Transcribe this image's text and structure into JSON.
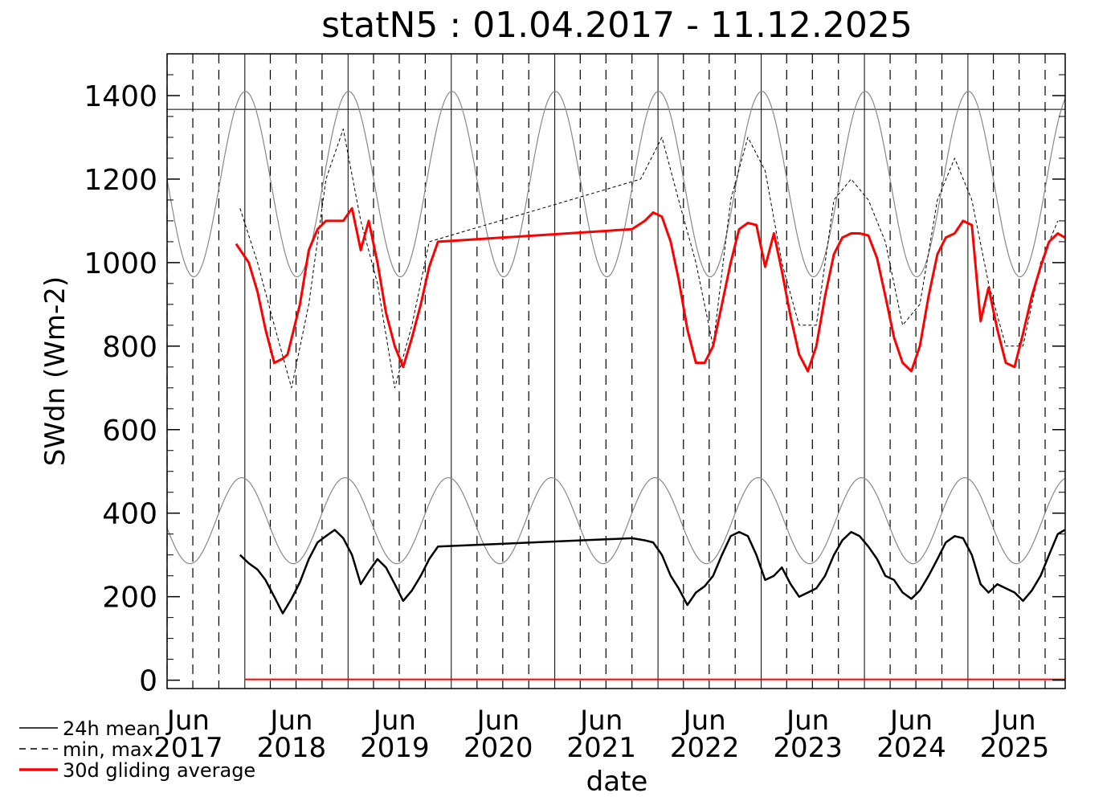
{
  "chart_data": {
    "type": "line",
    "title": "statN5 : 01.04.2017 - 11.12.2025",
    "xlabel": "date",
    "ylabel": "SWdn (Wm-2)",
    "xlim": [
      "2017-04-01",
      "2025-12-11"
    ],
    "ylim": [
      -20,
      1500
    ],
    "y_ticks": [
      "0",
      "200",
      "400",
      "600",
      "800",
      "1000",
      "1200",
      "1400"
    ],
    "x_ticks": [
      {
        "month": "Jun",
        "year": "2017",
        "date": "2017-06-15"
      },
      {
        "month": "Jun",
        "year": "2018",
        "date": "2018-06-15"
      },
      {
        "month": "Jun",
        "year": "2019",
        "date": "2019-06-15"
      },
      {
        "month": "Jun",
        "year": "2020",
        "date": "2020-06-15"
      },
      {
        "month": "Jun",
        "year": "2021",
        "date": "2021-06-15"
      },
      {
        "month": "Jun",
        "year": "2022",
        "date": "2022-06-15"
      },
      {
        "month": "Jun",
        "year": "2023",
        "date": "2023-06-15"
      },
      {
        "month": "Jun",
        "year": "2024",
        "date": "2024-06-15"
      },
      {
        "month": "Jun",
        "year": "2025",
        "date": "2025-06-15"
      }
    ],
    "reference_line": 1367,
    "legend": {
      "position": "bottom-left",
      "entries": [
        {
          "label": "24h mean",
          "style": "solid",
          "color": "#000000"
        },
        {
          "label": "min, max",
          "style": "dashed",
          "color": "#000000"
        },
        {
          "label": "30d gliding average",
          "style": "solid-thick",
          "color": "#ff0000"
        }
      ]
    },
    "series": [
      {
        "name": "24h mean",
        "color": "#000000",
        "x": [
          "2017-12-15",
          "2018-01-15",
          "2018-02-15",
          "2018-03-15",
          "2018-04-15",
          "2018-05-15",
          "2018-06-15",
          "2018-07-15",
          "2018-08-15",
          "2018-09-15",
          "2018-10-15",
          "2018-11-15",
          "2018-12-15",
          "2019-01-15",
          "2019-02-15",
          "2019-03-15",
          "2019-04-15",
          "2019-05-15",
          "2019-06-15",
          "2019-07-15",
          "2019-08-15",
          "2019-09-15",
          "2019-10-15",
          "2019-11-15",
          "2021-10-01",
          "2021-11-15",
          "2021-12-15",
          "2022-01-15",
          "2022-02-15",
          "2022-03-15",
          "2022-04-15",
          "2022-05-15",
          "2022-06-15",
          "2022-07-15",
          "2022-08-15",
          "2022-09-15",
          "2022-10-15",
          "2022-11-15",
          "2022-12-15",
          "2023-01-15",
          "2023-02-15",
          "2023-03-15",
          "2023-04-15",
          "2023-05-15",
          "2023-06-15",
          "2023-07-15",
          "2023-08-15",
          "2023-09-15",
          "2023-10-15",
          "2023-11-15",
          "2023-12-15",
          "2024-01-15",
          "2024-02-15",
          "2024-03-15",
          "2024-04-15",
          "2024-05-15",
          "2024-06-15",
          "2024-07-15",
          "2024-08-15",
          "2024-09-15",
          "2024-10-15",
          "2024-11-15",
          "2024-12-15",
          "2025-01-15",
          "2025-02-15",
          "2025-03-15",
          "2025-04-15",
          "2025-05-15",
          "2025-06-15",
          "2025-07-15",
          "2025-08-15",
          "2025-09-15",
          "2025-10-15",
          "2025-11-15",
          "2025-12-10"
        ],
        "values": [
          300,
          280,
          265,
          240,
          200,
          160,
          195,
          235,
          290,
          330,
          345,
          360,
          340,
          300,
          230,
          260,
          290,
          270,
          230,
          190,
          215,
          250,
          290,
          320,
          340,
          335,
          330,
          300,
          250,
          220,
          180,
          210,
          225,
          250,
          300,
          345,
          355,
          345,
          300,
          240,
          250,
          270,
          230,
          200,
          210,
          220,
          250,
          300,
          335,
          355,
          345,
          320,
          290,
          250,
          240,
          210,
          195,
          215,
          250,
          290,
          330,
          345,
          340,
          300,
          230,
          210,
          230,
          220,
          210,
          190,
          215,
          250,
          300,
          350,
          360
        ]
      },
      {
        "name": "min, max",
        "color": "#000000",
        "x": [
          "2017-12-15",
          "2018-02-15",
          "2018-04-15",
          "2018-06-15",
          "2018-08-15",
          "2018-10-15",
          "2018-12-15",
          "2019-02-15",
          "2019-04-15",
          "2019-06-15",
          "2019-08-15",
          "2019-10-15",
          "2021-11-01",
          "2022-01-15",
          "2022-03-15",
          "2022-05-15",
          "2022-07-15",
          "2022-09-15",
          "2022-11-15",
          "2023-01-15",
          "2023-03-15",
          "2023-05-15",
          "2023-07-15",
          "2023-09-15",
          "2023-11-15",
          "2024-01-15",
          "2024-03-15",
          "2024-05-15",
          "2024-07-15",
          "2024-09-15",
          "2024-11-15",
          "2025-01-15",
          "2025-03-15",
          "2025-05-15",
          "2025-07-15",
          "2025-09-15",
          "2025-11-15"
        ],
        "values": [
          1130,
          1000,
          850,
          700,
          900,
          1200,
          1320,
          1100,
          950,
          700,
          850,
          1050,
          1200,
          1300,
          1150,
          1000,
          800,
          1150,
          1300,
          1220,
          1000,
          850,
          850,
          1150,
          1200,
          1150,
          1050,
          850,
          900,
          1150,
          1250,
          1150,
          950,
          800,
          800,
          1000,
          1100
        ]
      },
      {
        "name": "30d gliding average",
        "color": "#ff0000",
        "x": [
          "2017-12-01",
          "2018-01-15",
          "2018-02-15",
          "2018-03-15",
          "2018-04-15",
          "2018-05-15",
          "2018-06-01",
          "2018-07-15",
          "2018-08-15",
          "2018-09-15",
          "2018-10-15",
          "2018-11-15",
          "2018-12-15",
          "2019-01-15",
          "2019-02-15",
          "2019-03-15",
          "2019-04-15",
          "2019-05-15",
          "2019-06-15",
          "2019-07-15",
          "2019-08-15",
          "2019-09-15",
          "2019-10-15",
          "2019-11-15",
          "2021-10-01",
          "2021-11-15",
          "2021-12-15",
          "2022-01-15",
          "2022-02-15",
          "2022-03-15",
          "2022-04-15",
          "2022-05-15",
          "2022-06-15",
          "2022-07-15",
          "2022-08-15",
          "2022-09-15",
          "2022-10-15",
          "2022-11-15",
          "2022-12-15",
          "2023-01-15",
          "2023-02-15",
          "2023-03-15",
          "2023-04-15",
          "2023-05-15",
          "2023-06-15",
          "2023-07-15",
          "2023-08-15",
          "2023-09-15",
          "2023-10-15",
          "2023-11-15",
          "2023-12-15",
          "2024-01-15",
          "2024-02-15",
          "2024-03-15",
          "2024-04-15",
          "2024-05-15",
          "2024-06-15",
          "2024-07-15",
          "2024-08-15",
          "2024-09-15",
          "2024-10-15",
          "2024-11-15",
          "2024-12-15",
          "2025-01-15",
          "2025-02-15",
          "2025-03-15",
          "2025-04-15",
          "2025-05-15",
          "2025-06-15",
          "2025-07-15",
          "2025-08-15",
          "2025-09-15",
          "2025-10-15",
          "2025-11-15",
          "2025-12-10"
        ],
        "values": [
          1045,
          1000,
          930,
          840,
          760,
          770,
          780,
          900,
          1030,
          1080,
          1100,
          1100,
          1100,
          1130,
          1030,
          1100,
          1000,
          880,
          800,
          750,
          820,
          900,
          990,
          1050,
          1080,
          1100,
          1120,
          1110,
          1050,
          960,
          840,
          760,
          760,
          800,
          900,
          1000,
          1080,
          1095,
          1090,
          990,
          1070,
          980,
          870,
          780,
          740,
          800,
          920,
          1020,
          1060,
          1070,
          1070,
          1065,
          1010,
          920,
          820,
          760,
          740,
          800,
          920,
          1020,
          1060,
          1070,
          1100,
          1090,
          860,
          940,
          840,
          760,
          750,
          830,
          920,
          990,
          1050,
          1070,
          1060
        ]
      }
    ]
  }
}
